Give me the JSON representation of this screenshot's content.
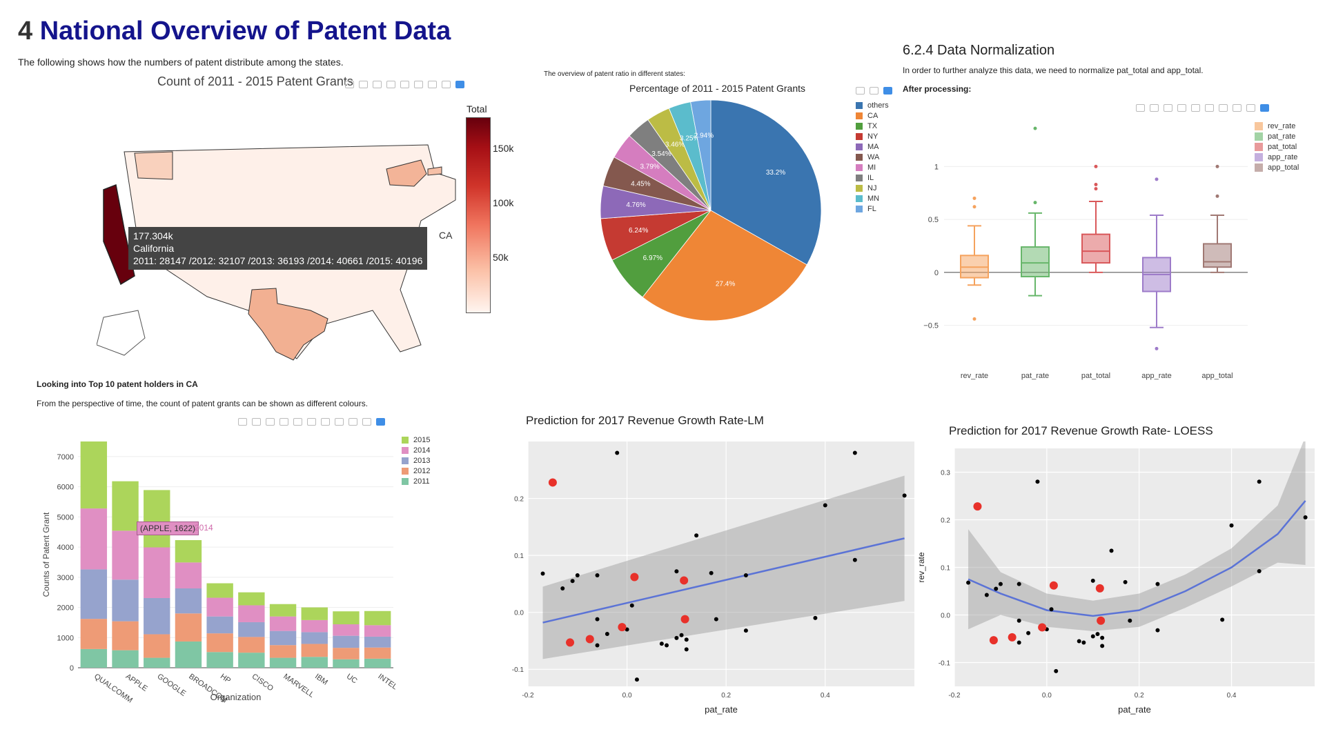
{
  "heading": {
    "number": "4",
    "title": "National Overview of Patent Data"
  },
  "intro": "The following shows how the numbers of patent distribute among the states.",
  "map": {
    "title": "Count of 2011 - 2015 Patent Grants",
    "colorbar_title": "Total",
    "colorbar_ticks": [
      "150k",
      "100k",
      "50k"
    ],
    "tooltip": {
      "value": "177.304k",
      "state": "California",
      "years": "2011: 28147 /2012: 32107 /2013: 36193 /2014: 40661 /2015: 40196",
      "code": "CA"
    }
  },
  "pie_section": {
    "note": "The overview of patent ratio in different states:"
  },
  "normalization": {
    "title": "6.2.4 Data Normalization",
    "text": "In order to further analyze this data, we need to normalize pat_total and app_total.",
    "after": "After processing:"
  },
  "ca_section": {
    "title": "Looking into Top 10 patent holders in CA",
    "text": "From the perspective of time, the count of patent grants can be shown as different colours.",
    "tooltip_label": "(APPLE, 1622)",
    "tooltip_year": "2014"
  },
  "colors": {
    "heading": "#14148c",
    "map_high": "#67000d",
    "map_low": "#fff5f0",
    "loess_line": "#5b73d6",
    "highlight_points": "#e8312a",
    "ggplot_panel": "#ebebeb"
  },
  "chart_data": [
    {
      "type": "map",
      "title": "Count of 2011 - 2015 Patent Grants",
      "colorbar_title": "Total",
      "highlighted": {
        "state": "California",
        "code": "CA",
        "total": 177304,
        "by_year": {
          "2011": 28147,
          "2012": 32107,
          "2013": 36193,
          "2014": 40661,
          "2015": 40196
        }
      }
    },
    {
      "type": "pie",
      "title": "Percentage of 2011 - 2015 Patent Grants",
      "labels": [
        "others",
        "CA",
        "TX",
        "NY",
        "MA",
        "WA",
        "MI",
        "IL",
        "NJ",
        "MN",
        "FL"
      ],
      "values": [
        33.2,
        27.4,
        6.97,
        6.24,
        4.76,
        4.45,
        3.79,
        3.54,
        3.46,
        3.25,
        2.94
      ],
      "slice_labels": [
        "33.2%",
        "27.4%",
        "6.97%",
        "6.24%",
        "4.76%",
        "4.45%",
        "3.79%",
        "3.54%",
        "3.46%",
        "3.25%",
        "2.94%"
      ],
      "colors": [
        "#3a75b0",
        "#ef8636",
        "#519e3e",
        "#c53a32",
        "#8d69b8",
        "#84584e",
        "#d57dbf",
        "#7f7f7f",
        "#bcbc45",
        "#5bbccc",
        "#6ea6e0"
      ]
    },
    {
      "type": "box",
      "categories": [
        "rev_rate",
        "pat_rate",
        "pat_total",
        "app_rate",
        "app_total"
      ],
      "colors": [
        "#f5a25d",
        "#67b66a",
        "#d9585a",
        "#9d7bc9",
        "#a07873"
      ],
      "y_ticks": [
        "1",
        "0.5",
        "0",
        "−0.5"
      ],
      "ylim": [
        -0.75,
        1.4
      ],
      "boxes": [
        {
          "q1": -0.05,
          "median": 0.05,
          "q3": 0.16,
          "lower": -0.12,
          "upper": 0.44,
          "outliers": [
            0.7,
            0.62,
            -0.44
          ]
        },
        {
          "q1": -0.04,
          "median": 0.09,
          "q3": 0.24,
          "lower": -0.22,
          "upper": 0.56,
          "outliers": [
            1.36,
            0.66
          ]
        },
        {
          "q1": 0.09,
          "median": 0.2,
          "q3": 0.36,
          "lower": 0.0,
          "upper": 0.67,
          "outliers": [
            1.0,
            0.83,
            0.79
          ]
        },
        {
          "q1": -0.18,
          "median": -0.02,
          "q3": 0.14,
          "lower": -0.52,
          "upper": 0.54,
          "outliers": [
            0.88,
            -0.72
          ]
        },
        {
          "q1": 0.05,
          "median": 0.1,
          "q3": 0.27,
          "lower": 0.0,
          "upper": 0.54,
          "outliers": [
            1.0,
            0.72
          ]
        }
      ]
    },
    {
      "type": "bar",
      "stacked": true,
      "categories": [
        "QUALCOMM",
        "APPLE",
        "GOOGLE",
        "BROADCOM",
        "HP",
        "CISCO",
        "MARVELL",
        "IBM",
        "UC",
        "INTEL"
      ],
      "xlabel": "Organization",
      "ylabel": "Counts of Patent Grant",
      "ylim": [
        0,
        7500
      ],
      "y_ticks": [
        0,
        1000,
        2000,
        3000,
        4000,
        5000,
        6000,
        7000
      ],
      "series": [
        {
          "name": "2011",
          "color": "#7fc6a4",
          "values": [
            620,
            580,
            330,
            870,
            520,
            500,
            330,
            360,
            280,
            300
          ]
        },
        {
          "name": "2012",
          "color": "#ee9b76",
          "values": [
            1000,
            960,
            780,
            930,
            620,
            520,
            420,
            430,
            380,
            370
          ]
        },
        {
          "name": "2013",
          "color": "#96a3cd",
          "values": [
            1640,
            1380,
            1200,
            830,
            560,
            490,
            470,
            390,
            400,
            360
          ]
        },
        {
          "name": "2014",
          "color": "#e08fc3",
          "values": [
            2020,
            1622,
            1680,
            860,
            620,
            560,
            480,
            400,
            380,
            380
          ]
        },
        {
          "name": "2015",
          "color": "#acd55b",
          "values": [
            2220,
            1640,
            1900,
            740,
            480,
            430,
            410,
            420,
            430,
            470
          ]
        }
      ]
    },
    {
      "type": "scatter",
      "title": "Prediction for 2017 Revenue Growth Rate-LM",
      "xlabel": "pat_rate",
      "ylabel": "",
      "xlim": [
        -0.2,
        0.58
      ],
      "ylim": [
        -0.13,
        0.3
      ],
      "x_ticks": [
        -0.2,
        0.0,
        0.2,
        0.4
      ],
      "x_tick_labels": [
        "-0.2",
        "0.0",
        "0.2",
        "0.4"
      ],
      "y_ticks": [
        -0.1,
        0.0,
        0.1,
        0.2
      ],
      "y_tick_labels": [
        "-0.1",
        "0.0",
        "0.1",
        "0.2"
      ],
      "fit": {
        "method": "lm",
        "x": [
          -0.17,
          0.56
        ],
        "y": [
          -0.018,
          0.13
        ],
        "band_upper": [
          0.045,
          0.24
        ],
        "band_lower": [
          -0.082,
          0.02
        ]
      },
      "points": [
        [
          -0.17,
          0.068
        ],
        [
          -0.13,
          0.042
        ],
        [
          -0.11,
          0.055
        ],
        [
          -0.1,
          0.065
        ],
        [
          -0.06,
          0.065
        ],
        [
          -0.06,
          -0.012
        ],
        [
          -0.06,
          -0.058
        ],
        [
          -0.02,
          0.28
        ],
        [
          -0.04,
          -0.038
        ],
        [
          0.01,
          0.012
        ],
        [
          -0.0,
          -0.03
        ],
        [
          0.02,
          -0.118
        ],
        [
          0.07,
          -0.055
        ],
        [
          0.08,
          -0.058
        ],
        [
          0.1,
          0.072
        ],
        [
          0.1,
          -0.045
        ],
        [
          0.11,
          -0.04
        ],
        [
          0.12,
          -0.048
        ],
        [
          0.12,
          -0.065
        ],
        [
          0.14,
          0.135
        ],
        [
          0.17,
          0.069
        ],
        [
          0.18,
          -0.012
        ],
        [
          0.24,
          0.065
        ],
        [
          0.24,
          -0.032
        ],
        [
          0.38,
          -0.01
        ],
        [
          0.4,
          0.188
        ],
        [
          0.46,
          0.28
        ],
        [
          0.46,
          0.092
        ],
        [
          0.56,
          0.205
        ]
      ],
      "highlight_points": [
        [
          -0.15,
          0.228
        ],
        [
          -0.115,
          -0.053
        ],
        [
          -0.075,
          -0.047
        ],
        [
          -0.01,
          -0.026
        ],
        [
          0.015,
          0.062
        ],
        [
          0.115,
          0.056
        ],
        [
          0.117,
          -0.012
        ]
      ]
    },
    {
      "type": "scatter",
      "title": "Prediction for 2017 Revenue Growth Rate- LOESS",
      "xlabel": "pat_rate",
      "ylabel": "rev_rate",
      "xlim": [
        -0.2,
        0.58
      ],
      "ylim": [
        -0.15,
        0.35
      ],
      "x_ticks": [
        -0.2,
        0.0,
        0.2,
        0.4
      ],
      "x_tick_labels": [
        "-0.2",
        "0.0",
        "0.2",
        "0.4"
      ],
      "y_ticks": [
        -0.1,
        0.0,
        0.1,
        0.2,
        0.3
      ],
      "y_tick_labels": [
        "-0.1",
        "0.0",
        "0.1",
        "0.2",
        "0.3"
      ],
      "fit": {
        "method": "loess",
        "x": [
          -0.17,
          -0.1,
          0.0,
          0.1,
          0.2,
          0.3,
          0.4,
          0.5,
          0.56
        ],
        "y": [
          0.075,
          0.045,
          0.01,
          -0.002,
          0.01,
          0.05,
          0.1,
          0.17,
          0.24
        ],
        "band_upper": [
          0.18,
          0.09,
          0.045,
          0.03,
          0.045,
          0.085,
          0.14,
          0.23,
          0.375
        ],
        "band_lower": [
          -0.03,
          0.0,
          -0.025,
          -0.034,
          -0.025,
          0.015,
          0.06,
          0.11,
          0.105
        ]
      },
      "points": [
        [
          -0.17,
          0.068
        ],
        [
          -0.13,
          0.042
        ],
        [
          -0.11,
          0.055
        ],
        [
          -0.1,
          0.065
        ],
        [
          -0.06,
          0.065
        ],
        [
          -0.06,
          -0.012
        ],
        [
          -0.06,
          -0.058
        ],
        [
          -0.02,
          0.28
        ],
        [
          -0.04,
          -0.038
        ],
        [
          0.01,
          0.012
        ],
        [
          -0.0,
          -0.03
        ],
        [
          0.02,
          -0.118
        ],
        [
          0.07,
          -0.055
        ],
        [
          0.08,
          -0.058
        ],
        [
          0.1,
          0.072
        ],
        [
          0.1,
          -0.045
        ],
        [
          0.11,
          -0.04
        ],
        [
          0.12,
          -0.048
        ],
        [
          0.12,
          -0.065
        ],
        [
          0.14,
          0.135
        ],
        [
          0.17,
          0.069
        ],
        [
          0.18,
          -0.012
        ],
        [
          0.24,
          0.065
        ],
        [
          0.24,
          -0.032
        ],
        [
          0.38,
          -0.01
        ],
        [
          0.4,
          0.188
        ],
        [
          0.46,
          0.28
        ],
        [
          0.46,
          0.092
        ],
        [
          0.56,
          0.205
        ]
      ],
      "highlight_points": [
        [
          -0.15,
          0.228
        ],
        [
          -0.115,
          -0.053
        ],
        [
          -0.075,
          -0.047
        ],
        [
          -0.01,
          -0.026
        ],
        [
          0.015,
          0.062
        ],
        [
          0.115,
          0.056
        ],
        [
          0.117,
          -0.012
        ]
      ]
    }
  ]
}
